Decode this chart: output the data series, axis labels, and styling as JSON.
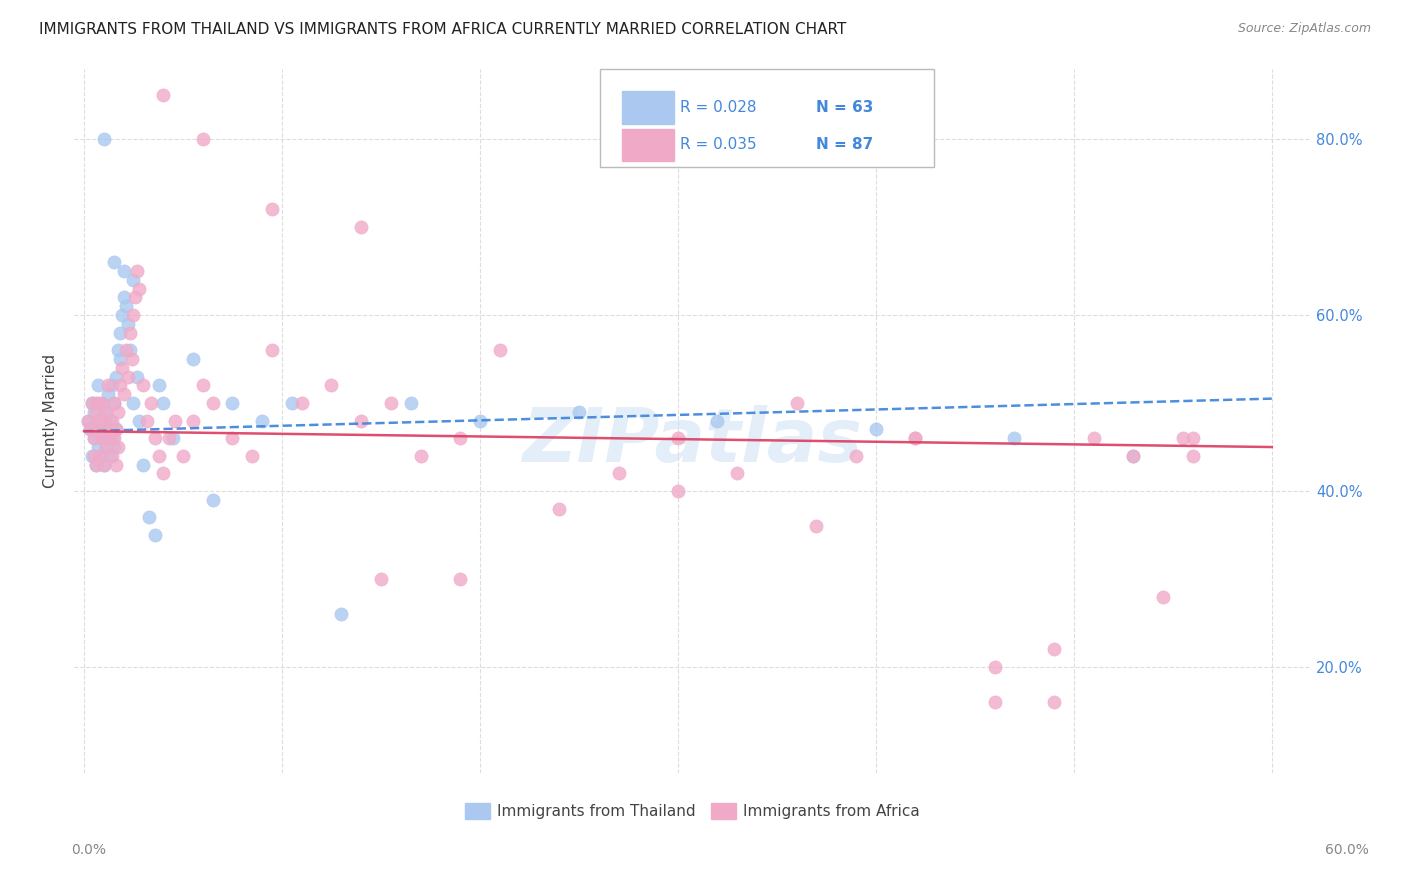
{
  "title": "IMMIGRANTS FROM THAILAND VS IMMIGRANTS FROM AFRICA CURRENTLY MARRIED CORRELATION CHART",
  "source": "Source: ZipAtlas.com",
  "ylabel": "Currently Married",
  "xlim": [
    -0.005,
    0.62
  ],
  "ylim": [
    0.08,
    0.88
  ],
  "ytick_vals": [
    0.2,
    0.4,
    0.6,
    0.8
  ],
  "legend_r1": "R = 0.028",
  "legend_n1": "N = 63",
  "legend_r2": "R = 0.035",
  "legend_n2": "N = 87",
  "blue_color": "#aac8f0",
  "pink_color": "#f0aac8",
  "blue_line_color": "#4488dd",
  "pink_line_color": "#dd4466",
  "watermark": "ZIPatlas",
  "title_color": "#222222",
  "source_color": "#888888",
  "ylabel_color": "#444444",
  "grid_color": "#dddddd",
  "right_tick_color": "#4488dd",
  "bottom_label_color": "#888888",
  "blue_scatter_x": [
    0.002,
    0.003,
    0.004,
    0.004,
    0.005,
    0.005,
    0.006,
    0.006,
    0.007,
    0.007,
    0.007,
    0.008,
    0.008,
    0.009,
    0.009,
    0.01,
    0.01,
    0.011,
    0.011,
    0.012,
    0.012,
    0.013,
    0.013,
    0.014,
    0.014,
    0.015,
    0.015,
    0.016,
    0.016,
    0.017,
    0.018,
    0.018,
    0.019,
    0.02,
    0.021,
    0.022,
    0.023,
    0.025,
    0.027,
    0.028,
    0.03,
    0.033,
    0.036,
    0.038,
    0.04,
    0.045,
    0.055,
    0.065,
    0.075,
    0.09,
    0.105,
    0.13,
    0.165,
    0.2,
    0.25,
    0.32,
    0.4,
    0.47,
    0.53,
    0.01,
    0.015,
    0.02,
    0.025
  ],
  "blue_scatter_y": [
    0.48,
    0.47,
    0.5,
    0.44,
    0.46,
    0.49,
    0.43,
    0.5,
    0.45,
    0.52,
    0.47,
    0.44,
    0.48,
    0.46,
    0.5,
    0.43,
    0.47,
    0.45,
    0.49,
    0.46,
    0.51,
    0.44,
    0.48,
    0.46,
    0.52,
    0.45,
    0.5,
    0.47,
    0.53,
    0.56,
    0.58,
    0.55,
    0.6,
    0.62,
    0.61,
    0.59,
    0.56,
    0.5,
    0.53,
    0.48,
    0.43,
    0.37,
    0.35,
    0.52,
    0.5,
    0.46,
    0.55,
    0.39,
    0.5,
    0.48,
    0.5,
    0.26,
    0.5,
    0.48,
    0.49,
    0.48,
    0.47,
    0.46,
    0.44,
    0.8,
    0.66,
    0.65,
    0.64
  ],
  "pink_scatter_x": [
    0.002,
    0.003,
    0.004,
    0.005,
    0.005,
    0.006,
    0.006,
    0.007,
    0.007,
    0.008,
    0.008,
    0.009,
    0.009,
    0.01,
    0.01,
    0.011,
    0.011,
    0.012,
    0.012,
    0.013,
    0.014,
    0.014,
    0.015,
    0.015,
    0.016,
    0.016,
    0.017,
    0.017,
    0.018,
    0.019,
    0.02,
    0.021,
    0.022,
    0.023,
    0.024,
    0.025,
    0.026,
    0.027,
    0.028,
    0.03,
    0.032,
    0.034,
    0.036,
    0.038,
    0.04,
    0.043,
    0.046,
    0.05,
    0.055,
    0.06,
    0.065,
    0.075,
    0.085,
    0.095,
    0.11,
    0.125,
    0.14,
    0.155,
    0.17,
    0.19,
    0.21,
    0.24,
    0.27,
    0.3,
    0.33,
    0.36,
    0.39,
    0.42,
    0.46,
    0.49,
    0.04,
    0.06,
    0.095,
    0.14,
    0.15,
    0.19,
    0.3,
    0.37,
    0.42,
    0.46,
    0.49,
    0.51,
    0.53,
    0.545,
    0.555,
    0.56,
    0.56
  ],
  "pink_scatter_y": [
    0.48,
    0.47,
    0.5,
    0.44,
    0.46,
    0.49,
    0.43,
    0.48,
    0.5,
    0.44,
    0.47,
    0.46,
    0.5,
    0.43,
    0.48,
    0.45,
    0.49,
    0.46,
    0.52,
    0.47,
    0.44,
    0.48,
    0.46,
    0.5,
    0.43,
    0.47,
    0.45,
    0.49,
    0.52,
    0.54,
    0.51,
    0.56,
    0.53,
    0.58,
    0.55,
    0.6,
    0.62,
    0.65,
    0.63,
    0.52,
    0.48,
    0.5,
    0.46,
    0.44,
    0.42,
    0.46,
    0.48,
    0.44,
    0.48,
    0.52,
    0.5,
    0.46,
    0.44,
    0.56,
    0.5,
    0.52,
    0.48,
    0.5,
    0.44,
    0.46,
    0.56,
    0.38,
    0.42,
    0.46,
    0.42,
    0.5,
    0.44,
    0.46,
    0.16,
    0.22,
    0.85,
    0.8,
    0.72,
    0.7,
    0.3,
    0.3,
    0.4,
    0.36,
    0.46,
    0.2,
    0.16,
    0.46,
    0.44,
    0.28,
    0.46,
    0.46,
    0.44
  ]
}
